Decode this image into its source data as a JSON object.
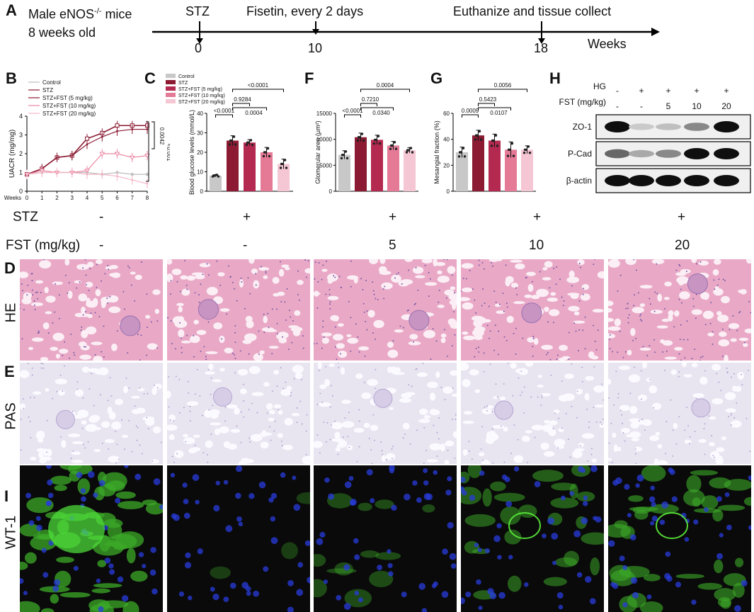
{
  "panel_letters": {
    "a": "A",
    "b": "B",
    "c": "C",
    "d": "D",
    "e": "E",
    "f": "F",
    "g": "G",
    "h": "H",
    "i": "I"
  },
  "timeline": {
    "mice_line1": "Male eNOS",
    "mice_sup": "-/-",
    "mice_line1_end": " mice",
    "mice_line2": "8 weeks old",
    "events": [
      "STZ",
      "Fisetin, every 2 days",
      "Euthanize and tissue collect"
    ],
    "ticks": [
      "0",
      "10",
      "18"
    ],
    "unit": "Weeks"
  },
  "conditions": {
    "stz_label": "STZ",
    "fst_label": "FST (mg/kg)",
    "stz_values": [
      "-",
      "+",
      "+",
      "+",
      "+"
    ],
    "fst_values": [
      "-",
      "-",
      "5",
      "10",
      "20"
    ]
  },
  "histology": {
    "row_labels": [
      "HE",
      "PAS",
      "WT-1"
    ]
  },
  "colors": {
    "control": "#c8c8c8",
    "stz": "#8b1a32",
    "fst5": "#b3294f",
    "fst10": "#e47a96",
    "fst20": "#f5c6d3",
    "he_bg": "#e9a9c6",
    "pas_bg": "#e8e4f0",
    "if_bg": "#0a0a0a"
  },
  "chart_data": [
    {
      "panel": "B",
      "type": "line",
      "ylabel": "UACR (mg/mg)",
      "xlabel": "Weeks",
      "x": [
        0,
        1,
        2,
        3,
        4,
        5,
        6,
        7,
        8
      ],
      "ylim": [
        0,
        4
      ],
      "yticks": [
        "0",
        "1",
        "2",
        "3",
        "4"
      ],
      "xticks": [
        "0",
        "1",
        "2",
        "3",
        "4",
        "5",
        "6",
        "7",
        "8"
      ],
      "series": [
        {
          "name": "Control",
          "values": [
            0.9,
            1.0,
            1.0,
            1.0,
            1.0,
            0.9,
            1.0,
            0.9,
            0.9
          ]
        },
        {
          "name": "STZ",
          "values": [
            0.9,
            1.2,
            1.8,
            1.9,
            2.8,
            3.1,
            3.5,
            3.5,
            3.5
          ]
        },
        {
          "name": "STZ+FST (5 mg/kg)",
          "values": [
            0.9,
            1.2,
            1.8,
            1.9,
            2.5,
            2.9,
            3.2,
            3.3,
            3.3
          ]
        },
        {
          "name": "STZ+FST (10 mg/kg)",
          "values": [
            0.9,
            1.1,
            1.0,
            1.0,
            1.1,
            2.0,
            2.0,
            1.8,
            1.9
          ]
        },
        {
          "name": "STZ+FST (20 mg/kg)",
          "values": [
            0.9,
            1.0,
            1.0,
            1.0,
            0.9,
            0.9,
            0.8,
            0.6,
            0.4
          ]
        }
      ],
      "annotations": [
        "0.0042",
        "<0.001"
      ]
    },
    {
      "panel": "C",
      "type": "bar",
      "ylabel": "Blood glucose levels (mmol/L)",
      "ylim": [
        0,
        40
      ],
      "yticks": [
        "0",
        "10",
        "20",
        "30",
        "40"
      ],
      "categories": [
        "Control",
        "STZ",
        "STZ+FST (5 mg/kg)",
        "STZ+FST (10 mg/kg)",
        "STZ+FST (20 mg/kg)"
      ],
      "values": [
        8,
        26,
        25,
        20,
        14
      ],
      "errors": [
        0.5,
        2.5,
        1.5,
        2.5,
        2.5
      ],
      "pvalues": [
        "<0.0001",
        "0.9284",
        "0.0004",
        "<0.0001"
      ]
    },
    {
      "panel": "F",
      "type": "bar",
      "ylabel": "Glomerular area (μm²)",
      "ylim": [
        0,
        15000
      ],
      "yticks": [
        "0",
        "5000",
        "10000",
        "15000"
      ],
      "categories": [
        "Control",
        "STZ",
        "STZ+FST (5 mg/kg)",
        "STZ+FST (10 mg/kg)",
        "STZ+FST (20 mg/kg)"
      ],
      "values": [
        7000,
        10400,
        9900,
        8800,
        7900
      ],
      "errors": [
        800,
        800,
        900,
        800,
        500
      ],
      "pvalues": [
        "<0.0001",
        "0.7210",
        "0.0340",
        "0.0004"
      ]
    },
    {
      "panel": "G",
      "type": "bar",
      "ylabel": "Mesangial fraction (%)",
      "ylim": [
        0,
        60
      ],
      "yticks": [
        "0",
        "20",
        "40",
        "60"
      ],
      "categories": [
        "Control",
        "STZ",
        "STZ+FST (5 mg/kg)",
        "STZ+FST (10 mg/kg)",
        "STZ+FST (20 mg/kg)"
      ],
      "values": [
        30,
        43,
        39,
        32,
        32
      ],
      "errors": [
        4,
        4,
        5,
        6,
        3
      ],
      "pvalues": [
        "0.0009",
        "0.5423",
        "0.0107",
        "0.0056"
      ]
    }
  ],
  "western_blot": {
    "hg_label": "HG",
    "fst_label": "FST (mg/kg)",
    "hg_values": [
      "-",
      "+",
      "+",
      "+",
      "+"
    ],
    "fst_values": [
      "-",
      "-",
      "5",
      "10",
      "20"
    ],
    "bands": [
      {
        "label": "ZO-1",
        "intensity": [
          1.0,
          0.15,
          0.2,
          0.45,
          1.0
        ]
      },
      {
        "label": "P-Cad",
        "intensity": [
          0.6,
          0.3,
          0.45,
          1.0,
          1.0
        ]
      },
      {
        "label": "β-actin",
        "intensity": [
          1.0,
          1.0,
          1.0,
          1.0,
          1.0
        ]
      }
    ]
  }
}
